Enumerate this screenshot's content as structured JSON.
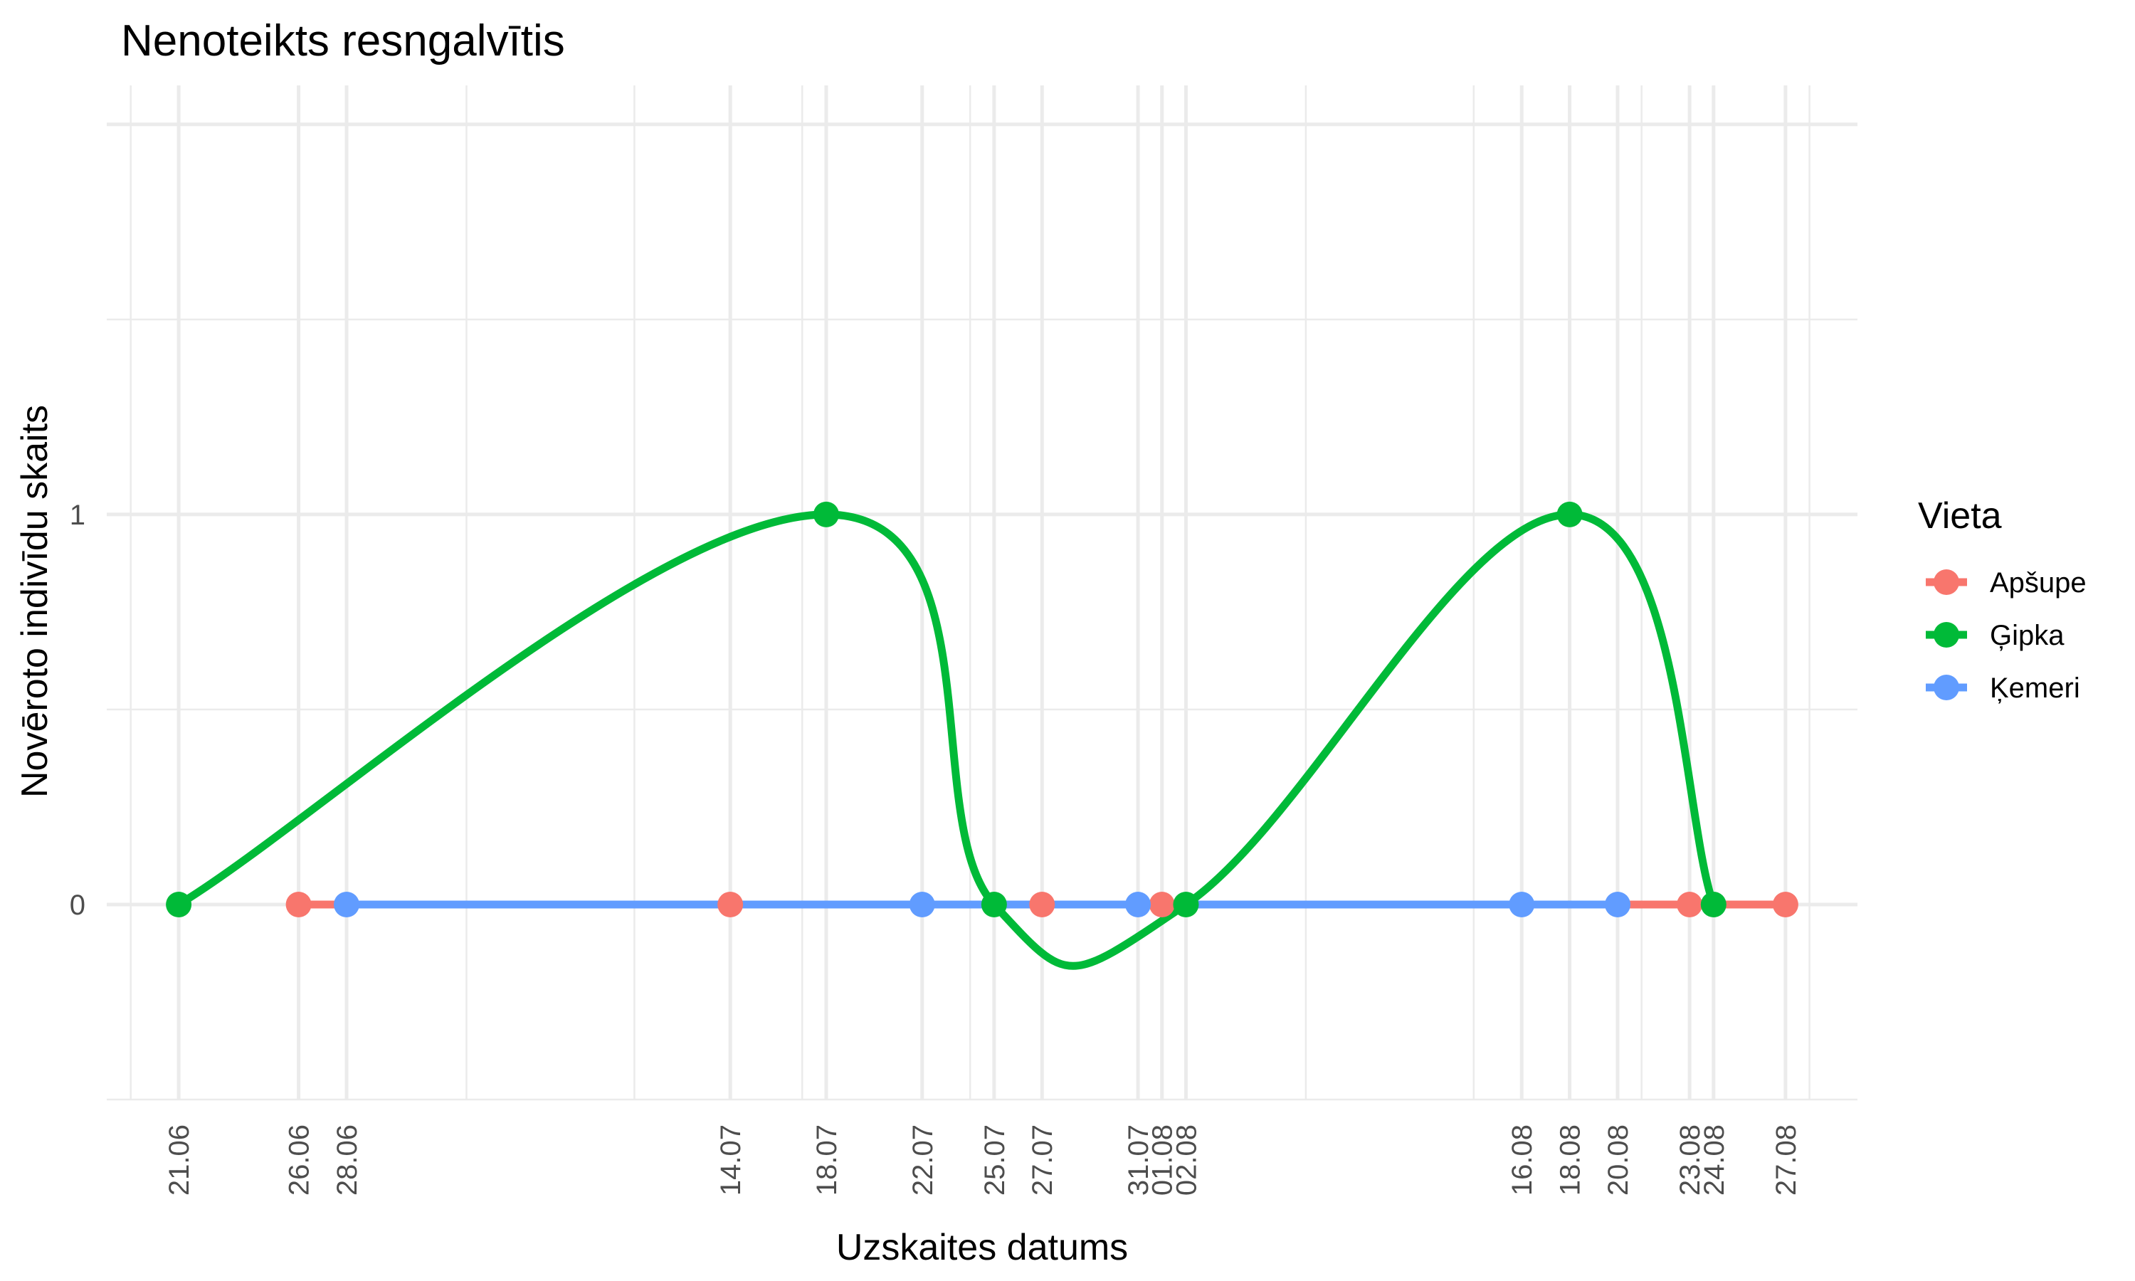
{
  "chart_data": {
    "type": "line",
    "title": "Nenoteikts resngalvītis",
    "xlabel": "Uzskaites datums",
    "ylabel": "Novēroto indivīdu skaits",
    "x_tick_labels": [
      "21.06",
      "26.06",
      "28.06",
      "14.07",
      "18.07",
      "22.07",
      "25.07",
      "27.07",
      "31.07",
      "01.08",
      "02.08",
      "16.08",
      "18.08",
      "20.08",
      "23.08",
      "24.08",
      "27.08"
    ],
    "y_ticks": [
      0,
      1
    ],
    "ylim": [
      -0.5,
      2.1
    ],
    "grid": true,
    "smoothed": true,
    "legend": {
      "title": "Vieta",
      "position": "right"
    },
    "series": [
      {
        "name": "Apšupe",
        "color": "#F8766D",
        "x": [
          "26.06",
          "14.07",
          "27.07",
          "01.08",
          "23.08",
          "27.08"
        ],
        "values": [
          0,
          0,
          0,
          0,
          0,
          0
        ]
      },
      {
        "name": "Ģipka",
        "color": "#00BA38",
        "x": [
          "21.06",
          "18.07",
          "25.07",
          "02.08",
          "18.08",
          "24.08"
        ],
        "values": [
          0,
          1,
          0,
          0,
          1,
          0
        ]
      },
      {
        "name": "Ķemeri",
        "color": "#619CFF",
        "x": [
          "28.06",
          "22.07",
          "31.07",
          "16.08",
          "20.08"
        ],
        "values": [
          0,
          0,
          0,
          0,
          0
        ]
      }
    ]
  }
}
